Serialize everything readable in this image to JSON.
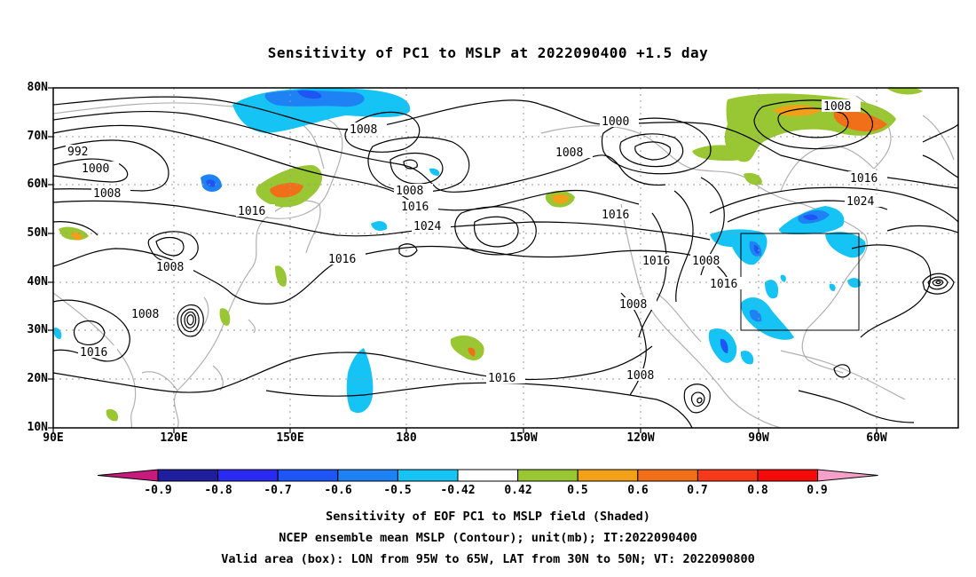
{
  "title": "Sensitivity of PC1 to MSLP at 2022090400 +1.5 day",
  "lat_labels": [
    "80N",
    "70N",
    "60N",
    "50N",
    "40N",
    "30N",
    "20N",
    "10N"
  ],
  "lon_labels": [
    "90E",
    "120E",
    "150E",
    "180",
    "150W",
    "120W",
    "90W",
    "60W"
  ],
  "contour_labels": [
    "992",
    "1000",
    "1008",
    "1008",
    "1016",
    "1016",
    "1008",
    "1008",
    "1000",
    "1008",
    "1016",
    "1024",
    "1016",
    "1008",
    "1016",
    "1016",
    "1008",
    "1008",
    "1016",
    "1008",
    "1016",
    "1024",
    "1008"
  ],
  "colorbar": {
    "labels": [
      "-0.9",
      "-0.8",
      "-0.7",
      "-0.6",
      "-0.5",
      "-0.42",
      "0.42",
      "0.5",
      "0.6",
      "0.7",
      "0.8",
      "0.9"
    ],
    "colors": [
      "#1e1e9e",
      "#2a2af0",
      "#1e55f5",
      "#1e82f5",
      "#16c3f5",
      "#ffffff",
      "#99c633",
      "#f2a018",
      "#f26f1a",
      "#f53a1a",
      "#f50a0a"
    ],
    "low_color": "#c8197d",
    "high_color": "#f4a0c8"
  },
  "captions": [
    "Sensitivity of EOF PC1 to MSLP field (Shaded)",
    "NCEP ensemble mean MSLP (Contour); unit(mb); IT:2022090400",
    "Valid area (box): LON from 95W to 65W, LAT from 30N to 50N; VT: 2022090800"
  ],
  "valid_area": {
    "lon_min": -95,
    "lon_max": -65,
    "lat_min": 30,
    "lat_max": 50
  },
  "map_extent": {
    "lon_min": 90,
    "lon_max": 310,
    "lat_min": 10,
    "lat_max": 80
  }
}
